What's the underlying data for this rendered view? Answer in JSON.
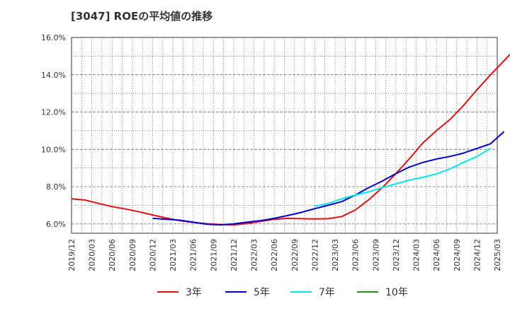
{
  "chart_data": {
    "type": "line",
    "title": "[3047]  ROEの平均値の推移",
    "xlabel": "",
    "ylabel": "",
    "x_ticks": [
      "2019/12",
      "2020/03",
      "2020/06",
      "2020/09",
      "2020/12",
      "2021/03",
      "2021/06",
      "2021/09",
      "2021/12",
      "2022/03",
      "2022/06",
      "2022/09",
      "2022/12",
      "2023/03",
      "2023/06",
      "2023/09",
      "2023/12",
      "2024/03",
      "2024/06",
      "2024/09",
      "2024/12",
      "2025/03"
    ],
    "y_ticks": [
      "6.0%",
      "8.0%",
      "10.0%",
      "12.0%",
      "14.0%",
      "16.0%"
    ],
    "y_tick_values": [
      6,
      8,
      10,
      12,
      14,
      16
    ],
    "ylim": [
      5.5,
      16
    ],
    "grid": true,
    "legend_position": "bottom",
    "series": [
      {
        "name": "3年",
        "color": "#dd1111",
        "start": "2019/12",
        "values": [
          7.35,
          7.28,
          7.1,
          6.93,
          6.8,
          6.65,
          6.48,
          6.32,
          6.18,
          6.08,
          6.01,
          5.97,
          5.95,
          6.02,
          6.14,
          6.25,
          6.3,
          6.28,
          6.27,
          6.28,
          6.4,
          6.75,
          7.3,
          7.95,
          8.7,
          9.5,
          10.35,
          11.0,
          11.6,
          12.35,
          13.2,
          14.0,
          14.75,
          15.5
        ]
      },
      {
        "name": "5年",
        "color": "#0000cc",
        "start": "2020/12",
        "values": [
          6.3,
          6.25,
          6.2,
          6.1,
          5.98,
          5.95,
          6.0,
          6.1,
          6.18,
          6.3,
          6.45,
          6.62,
          6.82,
          7.0,
          7.2,
          7.55,
          7.95,
          8.3,
          8.7,
          9.05,
          9.3,
          9.48,
          9.62,
          9.8,
          10.05,
          10.3,
          10.95
        ]
      },
      {
        "name": "7年",
        "color": "#00e5ee",
        "start": "2022/12",
        "values": [
          6.95,
          7.1,
          7.35,
          7.55,
          7.72,
          7.95,
          8.15,
          8.35,
          8.5,
          8.68,
          8.95,
          9.3,
          9.62,
          10.05
        ]
      },
      {
        "name": "10年",
        "color": "#228b22",
        "start": "",
        "values": []
      }
    ]
  }
}
